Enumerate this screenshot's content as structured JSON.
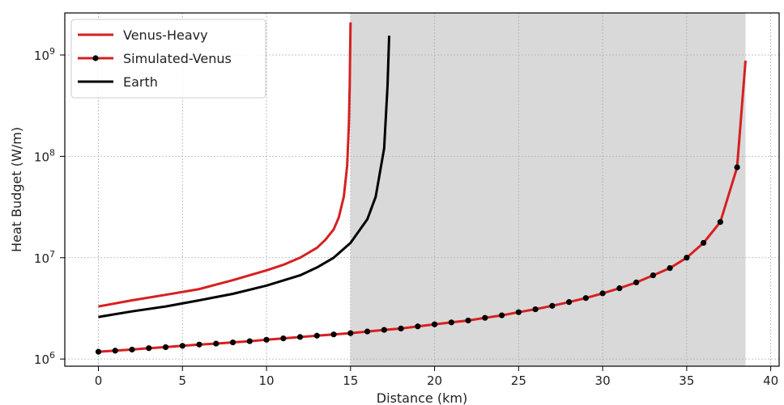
{
  "chart_data": {
    "type": "line",
    "title": "",
    "xlabel": "Distance (km)",
    "ylabel": "Heat Budget (W/m)",
    "xlim": [
      -2,
      40.5
    ],
    "ylim": [
      850000,
      2600000000
    ],
    "yscale": "log",
    "grid": true,
    "legend_position": "top-left",
    "x_ticks": [
      0,
      5,
      10,
      15,
      20,
      25,
      30,
      35,
      40
    ],
    "y_ticks": [
      {
        "value": 1000000,
        "base": "10",
        "exp": "6"
      },
      {
        "value": 10000000,
        "base": "10",
        "exp": "7"
      },
      {
        "value": 100000000,
        "base": "10",
        "exp": "8"
      },
      {
        "value": 1000000000,
        "base": "10",
        "exp": "9"
      }
    ],
    "shaded_region": {
      "x": [
        15,
        38.5
      ],
      "color": "#d9d9d9"
    },
    "series": [
      {
        "name": "Venus-Heavy",
        "color": "#d62020",
        "marker": "none",
        "x": [
          0,
          2,
          4,
          6,
          8,
          10,
          11,
          12,
          13,
          13.5,
          14,
          14.3,
          14.6,
          14.8,
          14.9,
          14.95,
          15
        ],
        "y": [
          3300000,
          3800000,
          4300000,
          4900000,
          6000000,
          7500000,
          8500000,
          10000000,
          12500000,
          15000000,
          19000000,
          25000000,
          40000000,
          80000000,
          200000000,
          500000000,
          2100000000
        ]
      },
      {
        "name": "Simulated-Venus",
        "color": "#d62020",
        "marker": "circle",
        "marker_color": "#000000",
        "x": [
          0,
          1,
          2,
          3,
          4,
          5,
          6,
          7,
          8,
          9,
          10,
          11,
          12,
          13,
          14,
          15,
          16,
          17,
          18,
          19,
          20,
          21,
          22,
          23,
          24,
          25,
          26,
          27,
          28,
          29,
          30,
          31,
          32,
          33,
          34,
          35,
          36,
          37,
          38,
          38.5
        ],
        "y": [
          1180000,
          1210000,
          1240000,
          1280000,
          1310000,
          1350000,
          1390000,
          1420000,
          1460000,
          1500000,
          1550000,
          1600000,
          1650000,
          1700000,
          1750000,
          1800000,
          1870000,
          1940000,
          2000000,
          2100000,
          2200000,
          2300000,
          2400000,
          2550000,
          2700000,
          2900000,
          3100000,
          3350000,
          3650000,
          4000000,
          4450000,
          5000000,
          5700000,
          6700000,
          7900000,
          10000000,
          14000000,
          22500000,
          78000000,
          880000000
        ]
      },
      {
        "name": "Earth",
        "color": "#000000",
        "marker": "none",
        "x": [
          0,
          2,
          4,
          6,
          8,
          10,
          12,
          13,
          14,
          15,
          16,
          16.5,
          17,
          17.2,
          17.3
        ],
        "y": [
          2600000,
          2950000,
          3300000,
          3800000,
          4400000,
          5300000,
          6700000,
          8000000,
          10000000,
          14000000,
          24000000,
          40000000,
          120000000,
          500000000,
          1550000000
        ]
      }
    ]
  }
}
